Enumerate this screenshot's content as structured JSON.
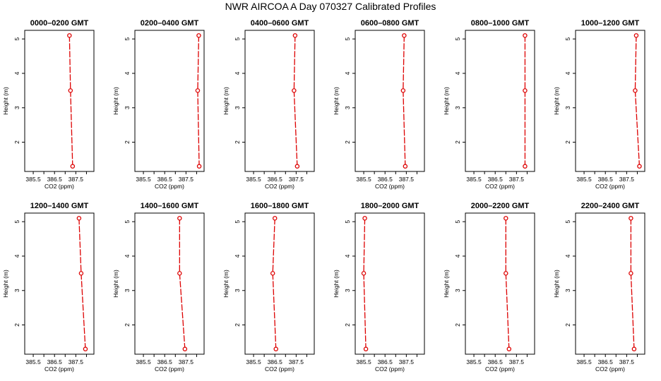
{
  "title": "NWR AIRCOA A  Day 070327  Calibrated Profiles",
  "chart_data": {
    "type": "line",
    "xlabel": "CO2 (ppm)",
    "ylabel": "Height (m)",
    "xlim": [
      385.1,
      388.35
    ],
    "ylim": [
      1.15,
      5.25
    ],
    "xticks": [
      385.5,
      386.0,
      386.5,
      387.0,
      387.5,
      388.0
    ],
    "xtick_labels": [
      "385.5",
      "386.5",
      "387.5"
    ],
    "yticks": [
      2,
      3,
      4,
      5
    ],
    "ytick_labels": [
      "2",
      "3",
      "4",
      "5"
    ],
    "heights": [
      5.1,
      3.5,
      1.3
    ],
    "series_color": "#dd0000",
    "panels": [
      {
        "label": "0000–0200 GMT",
        "co2": [
          387.2,
          387.25,
          387.35
        ]
      },
      {
        "label": "0200–0400 GMT",
        "co2": [
          388.1,
          388.05,
          388.12
        ]
      },
      {
        "label": "0400–0600 GMT",
        "co2": [
          387.45,
          387.4,
          387.55
        ]
      },
      {
        "label": "0600–0800 GMT",
        "co2": [
          387.4,
          387.35,
          387.45
        ]
      },
      {
        "label": "0800–1000 GMT",
        "co2": [
          387.9,
          387.9,
          387.9
        ]
      },
      {
        "label": "1000–1200 GMT",
        "co2": [
          387.95,
          387.9,
          388.1
        ]
      },
      {
        "label": "1200–1400 GMT",
        "co2": [
          387.65,
          387.75,
          387.95
        ]
      },
      {
        "label": "1400–1600 GMT",
        "co2": [
          387.2,
          387.2,
          387.45
        ]
      },
      {
        "label": "1600–1800 GMT",
        "co2": [
          386.5,
          386.4,
          386.55
        ]
      },
      {
        "label": "1800–2000 GMT",
        "co2": [
          385.55,
          385.5,
          385.6
        ]
      },
      {
        "label": "2000–2200 GMT",
        "co2": [
          387.0,
          387.0,
          387.15
        ]
      },
      {
        "label": "2200–2400 GMT",
        "co2": [
          387.7,
          387.7,
          387.85
        ]
      }
    ]
  }
}
